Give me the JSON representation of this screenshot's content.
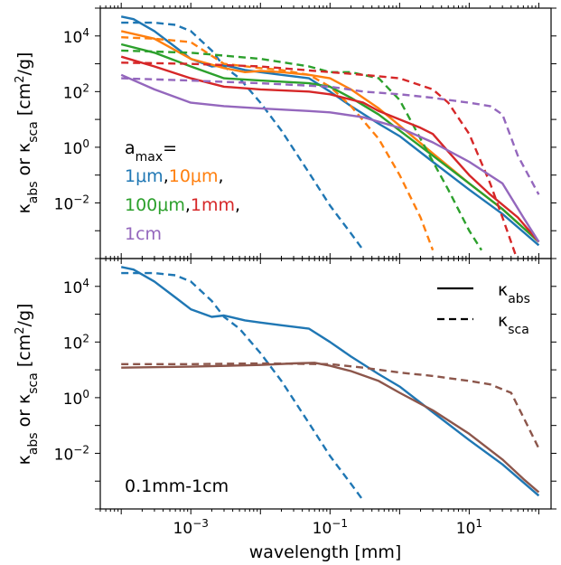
{
  "xlabel": "wavelength [mm]",
  "x_tick_labels": [
    {
      "value": 0.001,
      "base": "10",
      "exp": "−3"
    },
    {
      "value": 0.1,
      "base": "10",
      "exp": "−1"
    },
    {
      "value": 10,
      "base": "10",
      "exp": "1"
    }
  ],
  "y_tick_labels": [
    {
      "value": 10000,
      "base": "10",
      "exp": "4"
    },
    {
      "value": 100,
      "base": "10",
      "exp": "2"
    },
    {
      "value": 1,
      "base": "10",
      "exp": "0"
    },
    {
      "value": 0.01,
      "base": "10",
      "exp": "−2"
    }
  ],
  "ylabel": {
    "k1": "κ",
    "s1": "abs",
    "or": " or ",
    "k2": "κ",
    "s2": "sca",
    "unit_a": " [cm",
    "unit_exp": "2",
    "unit_b": "/g]"
  },
  "top_annotation": {
    "a": "a",
    "sub": "max",
    "eq": "=",
    "l1": "1μm",
    "c1": ",",
    "l2": "10μm",
    "c2": ",",
    "l3": "100μm",
    "c3": ",",
    "l4": "1mm",
    "c4": ",",
    "l5": "1cm"
  },
  "bottom_annotation": "0.1mm-1cm",
  "legend": {
    "abs_k": "κ",
    "abs_sub": "abs",
    "sca_k": "κ",
    "sca_sub": "sca"
  },
  "colors": {
    "1um": "#1f77b4",
    "10um": "#ff7f0e",
    "100um": "#2ca02c",
    "1mm": "#d62728",
    "1cm": "#9467bd",
    "dist": "#8c564b"
  },
  "chart_data": [
    {
      "type": "line",
      "panel": "top",
      "xscale": "log",
      "yscale": "log",
      "xlim": [
        5e-05,
        150
      ],
      "ylim": [
        0.0001,
        100000
      ],
      "xlabel": "wavelength [mm]",
      "ylabel": "κabs or κsca [cm²/g]",
      "series": [
        {
          "name": "1μm",
          "kind": "abs",
          "color": "#1f77b4",
          "style": "solid",
          "x": [
            0.0001,
            0.00015,
            0.0003,
            0.0006,
            0.001,
            0.002,
            0.003,
            0.006,
            0.01,
            0.02,
            0.05,
            0.1,
            0.2,
            0.5,
            1,
            3,
            10,
            30,
            100
          ],
          "y": [
            50000,
            40000,
            15000,
            4000,
            1500,
            800,
            900,
            600,
            500,
            400,
            300,
            100,
            30,
            7,
            2.5,
            0.3,
            0.03,
            0.004,
            0.0003
          ]
        },
        {
          "name": "1μm",
          "kind": "sca",
          "color": "#1f77b4",
          "style": "dashed",
          "x": [
            0.0001,
            0.0003,
            0.0006,
            0.001,
            0.002,
            0.003,
            0.005,
            0.01,
            0.02,
            0.05,
            0.1,
            0.2,
            0.3
          ],
          "y": [
            30000,
            30000,
            25000,
            15000,
            3000,
            800,
            300,
            40,
            4,
            0.12,
            0.008,
            0.0008,
            0.0002
          ]
        },
        {
          "name": "10μm",
          "kind": "abs",
          "color": "#ff7f0e",
          "style": "solid",
          "x": [
            0.0001,
            0.0003,
            0.001,
            0.003,
            0.006,
            0.01,
            0.02,
            0.05,
            0.1,
            0.2,
            0.5,
            1,
            3,
            10,
            30,
            100
          ],
          "y": [
            15000,
            8000,
            1500,
            700,
            500,
            550,
            500,
            400,
            300,
            120,
            25,
            6,
            0.6,
            0.05,
            0.006,
            0.0004
          ]
        },
        {
          "name": "10μm",
          "kind": "sca",
          "color": "#ff7f0e",
          "style": "dashed",
          "x": [
            0.0001,
            0.0003,
            0.001,
            0.003,
            0.01,
            0.02,
            0.05,
            0.1,
            0.2,
            0.5,
            1,
            2,
            3
          ],
          "y": [
            9000,
            8000,
            6000,
            1000,
            700,
            600,
            400,
            150,
            30,
            2,
            0.1,
            0.003,
            0.0002
          ]
        },
        {
          "name": "100μm",
          "kind": "abs",
          "color": "#2ca02c",
          "style": "solid",
          "x": [
            0.0001,
            0.0003,
            0.001,
            0.003,
            0.01,
            0.05,
            0.1,
            0.2,
            0.5,
            1,
            3,
            10,
            30,
            100
          ],
          "y": [
            5000,
            2500,
            800,
            300,
            250,
            200,
            150,
            60,
            15,
            4,
            0.5,
            0.05,
            0.006,
            0.0004
          ]
        },
        {
          "name": "100μm",
          "kind": "sca",
          "color": "#2ca02c",
          "style": "dashed",
          "x": [
            0.0001,
            0.001,
            0.01,
            0.05,
            0.1,
            0.2,
            0.5,
            1,
            2,
            5,
            10,
            15
          ],
          "y": [
            3000,
            2500,
            1500,
            800,
            500,
            500,
            300,
            50,
            2,
            0.03,
            0.001,
            0.0002
          ]
        },
        {
          "name": "1mm",
          "kind": "abs",
          "color": "#d62728",
          "style": "solid",
          "x": [
            0.0001,
            0.0003,
            0.001,
            0.003,
            0.01,
            0.05,
            0.1,
            0.3,
            0.5,
            1,
            2,
            3,
            5,
            10,
            20,
            50,
            100
          ],
          "y": [
            1800,
            800,
            300,
            150,
            120,
            100,
            80,
            40,
            20,
            10,
            5,
            3,
            0.7,
            0.1,
            0.02,
            0.003,
            0.0004
          ]
        },
        {
          "name": "1mm",
          "kind": "sca",
          "color": "#d62728",
          "style": "dashed",
          "x": [
            0.0001,
            0.001,
            0.01,
            0.1,
            0.3,
            1,
            3,
            5,
            10,
            20,
            30,
            50
          ],
          "y": [
            1100,
            1000,
            800,
            500,
            400,
            300,
            120,
            40,
            3,
            0.05,
            0.003,
            8e-05
          ]
        },
        {
          "name": "1cm",
          "kind": "abs",
          "color": "#9467bd",
          "style": "solid",
          "x": [
            0.0001,
            0.0003,
            0.001,
            0.003,
            0.01,
            0.05,
            0.1,
            0.3,
            1,
            3,
            10,
            30,
            60,
            100
          ],
          "y": [
            400,
            120,
            40,
            30,
            25,
            20,
            18,
            12,
            5,
            1.5,
            0.3,
            0.05,
            0.003,
            0.0004
          ]
        },
        {
          "name": "1cm",
          "kind": "sca",
          "color": "#9467bd",
          "style": "dashed",
          "x": [
            0.0001,
            0.001,
            0.01,
            0.1,
            0.3,
            1,
            3,
            5,
            10,
            20,
            30,
            50,
            100
          ],
          "y": [
            300,
            250,
            200,
            150,
            100,
            80,
            60,
            50,
            40,
            30,
            15,
            0.5,
            0.02
          ]
        }
      ]
    },
    {
      "type": "line",
      "panel": "bottom",
      "xscale": "log",
      "yscale": "log",
      "xlim": [
        5e-05,
        150
      ],
      "ylim": [
        0.0001,
        100000
      ],
      "xlabel": "wavelength [mm]",
      "ylabel": "κabs or κsca [cm²/g]",
      "series": [
        {
          "name": "1μm",
          "kind": "abs",
          "color": "#1f77b4",
          "style": "solid",
          "x": [
            0.0001,
            0.00015,
            0.0003,
            0.0006,
            0.001,
            0.002,
            0.003,
            0.006,
            0.01,
            0.02,
            0.05,
            0.1,
            0.2,
            0.5,
            1,
            3,
            10,
            30,
            100
          ],
          "y": [
            50000,
            40000,
            15000,
            4000,
            1500,
            800,
            900,
            600,
            500,
            400,
            300,
            100,
            30,
            7,
            2.5,
            0.3,
            0.03,
            0.004,
            0.0003
          ]
        },
        {
          "name": "1μm",
          "kind": "sca",
          "color": "#1f77b4",
          "style": "dashed",
          "x": [
            0.0001,
            0.0003,
            0.0006,
            0.001,
            0.002,
            0.003,
            0.005,
            0.01,
            0.02,
            0.05,
            0.1,
            0.2,
            0.3
          ],
          "y": [
            30000,
            30000,
            25000,
            15000,
            3000,
            800,
            300,
            40,
            4,
            0.12,
            0.008,
            0.0008,
            0.0002
          ]
        },
        {
          "name": "0.1mm-1cm",
          "kind": "abs",
          "color": "#8c564b",
          "style": "solid",
          "x": [
            0.0001,
            0.001,
            0.01,
            0.03,
            0.06,
            0.1,
            0.2,
            0.5,
            1,
            3,
            10,
            30,
            60,
            100
          ],
          "y": [
            12,
            13,
            15,
            17,
            18,
            14,
            9,
            4,
            1.5,
            0.35,
            0.05,
            0.006,
            0.0012,
            0.0004
          ]
        },
        {
          "name": "0.1mm-1cm",
          "kind": "sca",
          "color": "#8c564b",
          "style": "dashed",
          "x": [
            0.0001,
            0.001,
            0.01,
            0.1,
            0.3,
            1,
            3,
            10,
            20,
            40,
            60,
            100
          ],
          "y": [
            16,
            16,
            17,
            16,
            12,
            8,
            6,
            4,
            3,
            1.5,
            0.2,
            0.015
          ]
        }
      ]
    }
  ]
}
